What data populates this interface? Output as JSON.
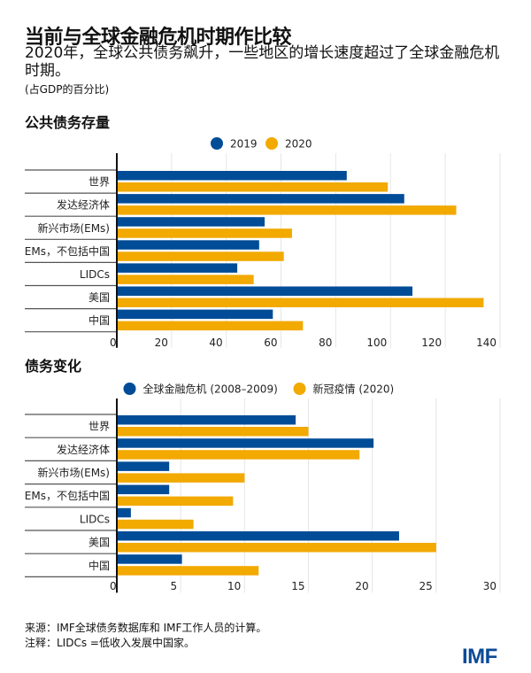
{
  "title": "当前与全球金融危机时期作比较",
  "subtitle": "2020年，全球公共债务飙升，一些地区的增长速度超过了全球金融危机时期。",
  "unit": "(占GDP的百分比)",
  "colors": {
    "blue": "#004c97",
    "orange": "#f2a900"
  },
  "chart_data": [
    {
      "type": "bar",
      "orientation": "horizontal",
      "title": "公共债务存量",
      "categories": [
        "世界",
        "发达经济体",
        "新兴市场(EMs)",
        "EMs，不包括中国",
        "LIDCs",
        "美国",
        "中国"
      ],
      "series": [
        {
          "name": "2019",
          "color": "#004c97",
          "values": [
            84,
            105,
            54,
            52,
            44,
            108,
            57
          ]
        },
        {
          "name": "2020",
          "color": "#f2a900",
          "values": [
            99,
            124,
            64,
            61,
            50,
            134,
            68
          ]
        }
      ],
      "xlim": [
        0,
        140
      ],
      "xticks": [
        "0",
        "20",
        "40",
        "60",
        "80",
        "100",
        "120",
        "140"
      ],
      "grid": true,
      "legend": "top-center"
    },
    {
      "type": "bar",
      "orientation": "horizontal",
      "title": "债务变化",
      "categories": [
        "世界",
        "发达经济体",
        "新兴市场(EMs)",
        "EMs，不包括中国",
        "LIDCs",
        "美国",
        "中国"
      ],
      "series": [
        {
          "name": "全球金融危机 (2008–2009)",
          "color": "#004c97",
          "values": [
            14.0,
            20.1,
            4.1,
            4.1,
            1.1,
            22.1,
            5.1
          ]
        },
        {
          "name": "新冠疫情 (2020)",
          "color": "#f2a900",
          "values": [
            15.0,
            19.0,
            10.0,
            9.1,
            6.0,
            25.0,
            11.1
          ]
        }
      ],
      "xlim": [
        0,
        30
      ],
      "xticks": [
        "0",
        "5",
        "10",
        "15",
        "20",
        "25",
        "30"
      ],
      "grid": true,
      "legend": "top-center"
    }
  ],
  "footer": {
    "source": "来源：IMF全球债务数据库和 IMF工作人员的计算。",
    "note": "注释：LIDCs =低收入发展中国家。"
  },
  "logo": "IMF"
}
